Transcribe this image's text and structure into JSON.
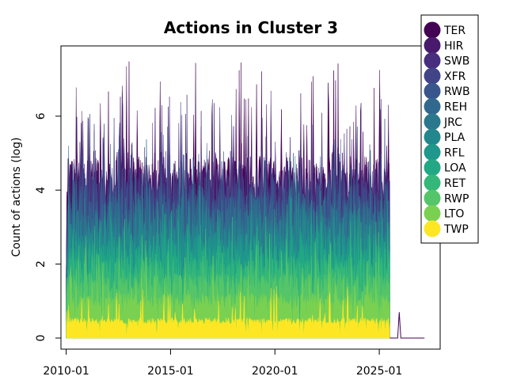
{
  "chart_data": {
    "type": "area",
    "title": "Actions in Cluster 3",
    "xlabel": "",
    "ylabel": "Count of actions (log)",
    "x_ticks": [
      "2010-01",
      "2015-01",
      "2020-01",
      "2025-01"
    ],
    "y_ticks": [
      "0",
      "2",
      "4",
      "6"
    ],
    "xlim": [
      "2009-10",
      "2027-12"
    ],
    "ylim": [
      -0.3,
      7.9
    ],
    "x_start": "2010-01",
    "x_end_active": "2025-07",
    "legend_position": "top-right (outside plot)",
    "series": [
      {
        "name": "TER",
        "color": "#440154",
        "typical_top": 4.6,
        "peak_max": 7.55
      },
      {
        "name": "HIR",
        "color": "#481A6C",
        "typical_top": 4.4,
        "peak_max": 6.9
      },
      {
        "name": "SWB",
        "color": "#472F7D",
        "typical_top": 4.2,
        "peak_max": 6.6
      },
      {
        "name": "XFR",
        "color": "#414487",
        "typical_top": 4.0,
        "peak_max": 6.2
      },
      {
        "name": "RWB",
        "color": "#39568C",
        "typical_top": 3.8,
        "peak_max": 5.8
      },
      {
        "name": "REH",
        "color": "#31688E",
        "typical_top": 3.5,
        "peak_max": 5.4
      },
      {
        "name": "JRC",
        "color": "#2A788E",
        "typical_top": 3.2,
        "peak_max": 5.0
      },
      {
        "name": "PLA",
        "color": "#23888E",
        "typical_top": 2.9,
        "peak_max": 4.6
      },
      {
        "name": "RFL",
        "color": "#1F988B",
        "typical_top": 2.6,
        "peak_max": 4.2
      },
      {
        "name": "LOA",
        "color": "#22A884",
        "typical_top": 2.3,
        "peak_max": 3.8
      },
      {
        "name": "RET",
        "color": "#35B779",
        "typical_top": 2.0,
        "peak_max": 3.4
      },
      {
        "name": "RWP",
        "color": "#54C568",
        "typical_top": 1.6,
        "peak_max": 2.9
      },
      {
        "name": "LTO",
        "color": "#7AD151",
        "typical_top": 1.1,
        "peak_max": 2.3
      },
      {
        "name": "TWP",
        "color": "#FDE725",
        "typical_top": 0.5,
        "peak_max": 1.4
      }
    ]
  }
}
